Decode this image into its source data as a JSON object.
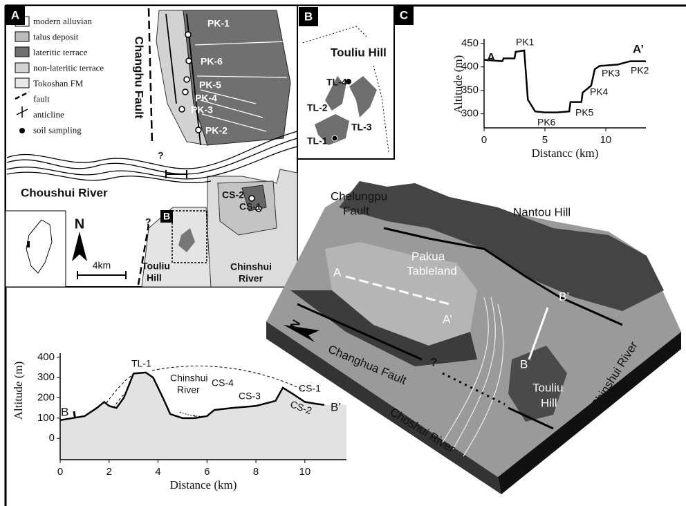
{
  "panel_a": {
    "label": "A",
    "legend": [
      "modern alluvian",
      "talus deposit",
      "lateritic terrace",
      "non-lateritic terrace",
      "Tokoshan FM",
      "fault",
      "anticline",
      "soil sampling"
    ],
    "fault": "Changhu Fault",
    "sites": [
      "PK-1",
      "PK-6",
      "PK-5",
      "PK-4",
      "PK-3",
      "PK-2",
      "CS-2",
      "CS-1"
    ],
    "question_marks": [
      "?",
      "?"
    ],
    "river": "Choushui River",
    "inset": "B",
    "north": "N",
    "scale": "4km",
    "hill": [
      "Touliu",
      "Hill"
    ],
    "river_2": [
      "Chinshui",
      "River"
    ]
  },
  "panel_b": {
    "label": "B",
    "hill": "Touliu Hill",
    "sites": [
      "TL-4",
      "TL-2",
      "TL-3",
      "TL-1"
    ]
  },
  "panel_c": {
    "label": "C",
    "type": "line",
    "x_label": "Distancc (km)",
    "y_label": "Altitude (m)",
    "x": [
      0,
      1.5,
      1.6,
      2.5,
      2.6,
      3.3,
      3.6,
      4.2,
      5,
      6,
      7,
      7.1,
      8,
      8.1,
      8.8,
      9.1,
      9.5,
      10,
      11,
      12,
      13.3
    ],
    "values": [
      415,
      412,
      418,
      418,
      432,
      435,
      330,
      305,
      303,
      303,
      305,
      325,
      325,
      345,
      360,
      395,
      402,
      403,
      405,
      412,
      412
    ],
    "xlim": [
      0,
      13.3
    ],
    "ylim": [
      270,
      460
    ],
    "xticks": [
      0,
      5,
      10
    ],
    "yticks": [
      300,
      350,
      400,
      450
    ],
    "annotations": [
      "A",
      "PK1",
      "A’",
      "PK2",
      "PK3",
      "PK4",
      "PK5",
      "PK6"
    ]
  },
  "block": {
    "fault_1": [
      "Chelungpu",
      "Fault"
    ],
    "hill_1": "Nantou Hill",
    "tableland": [
      "Pakua",
      "Tableland"
    ],
    "points": [
      "A",
      "A’",
      "B",
      "B’"
    ],
    "fault_2": "Changhua Fault",
    "question_mark": "?",
    "hill_2": [
      "Touliu",
      "Hill"
    ],
    "river_1": "Choshui River",
    "river_2": "Chinshui River",
    "north": "N"
  },
  "profile": {
    "type": "line",
    "x_label": "Distance (km)",
    "y_label": "Altitude (m)",
    "x": [
      0,
      0.5,
      1,
      1.5,
      1.8,
      2,
      2.3,
      2.6,
      3,
      3.5,
      3.8,
      4.2,
      4.5,
      5,
      5.5,
      6,
      6.3,
      7,
      8,
      8.8,
      9.1,
      9.5,
      10,
      10.5,
      10.8
    ],
    "values": [
      90,
      100,
      110,
      150,
      180,
      160,
      150,
      200,
      320,
      325,
      300,
      200,
      120,
      100,
      100,
      110,
      140,
      150,
      160,
      185,
      250,
      220,
      180,
      170,
      165
    ],
    "xlim": [
      0,
      11.7
    ],
    "ylim": [
      -105,
      420
    ],
    "xticks": [
      0,
      2,
      4,
      6,
      8,
      10
    ],
    "yticks": [
      0,
      100,
      200,
      300,
      400
    ],
    "annotations": [
      "TL-1",
      "Chinshui",
      "River",
      "CS-4",
      "CS-3",
      "CS-1",
      "CS-2",
      "B",
      "B’"
    ]
  }
}
